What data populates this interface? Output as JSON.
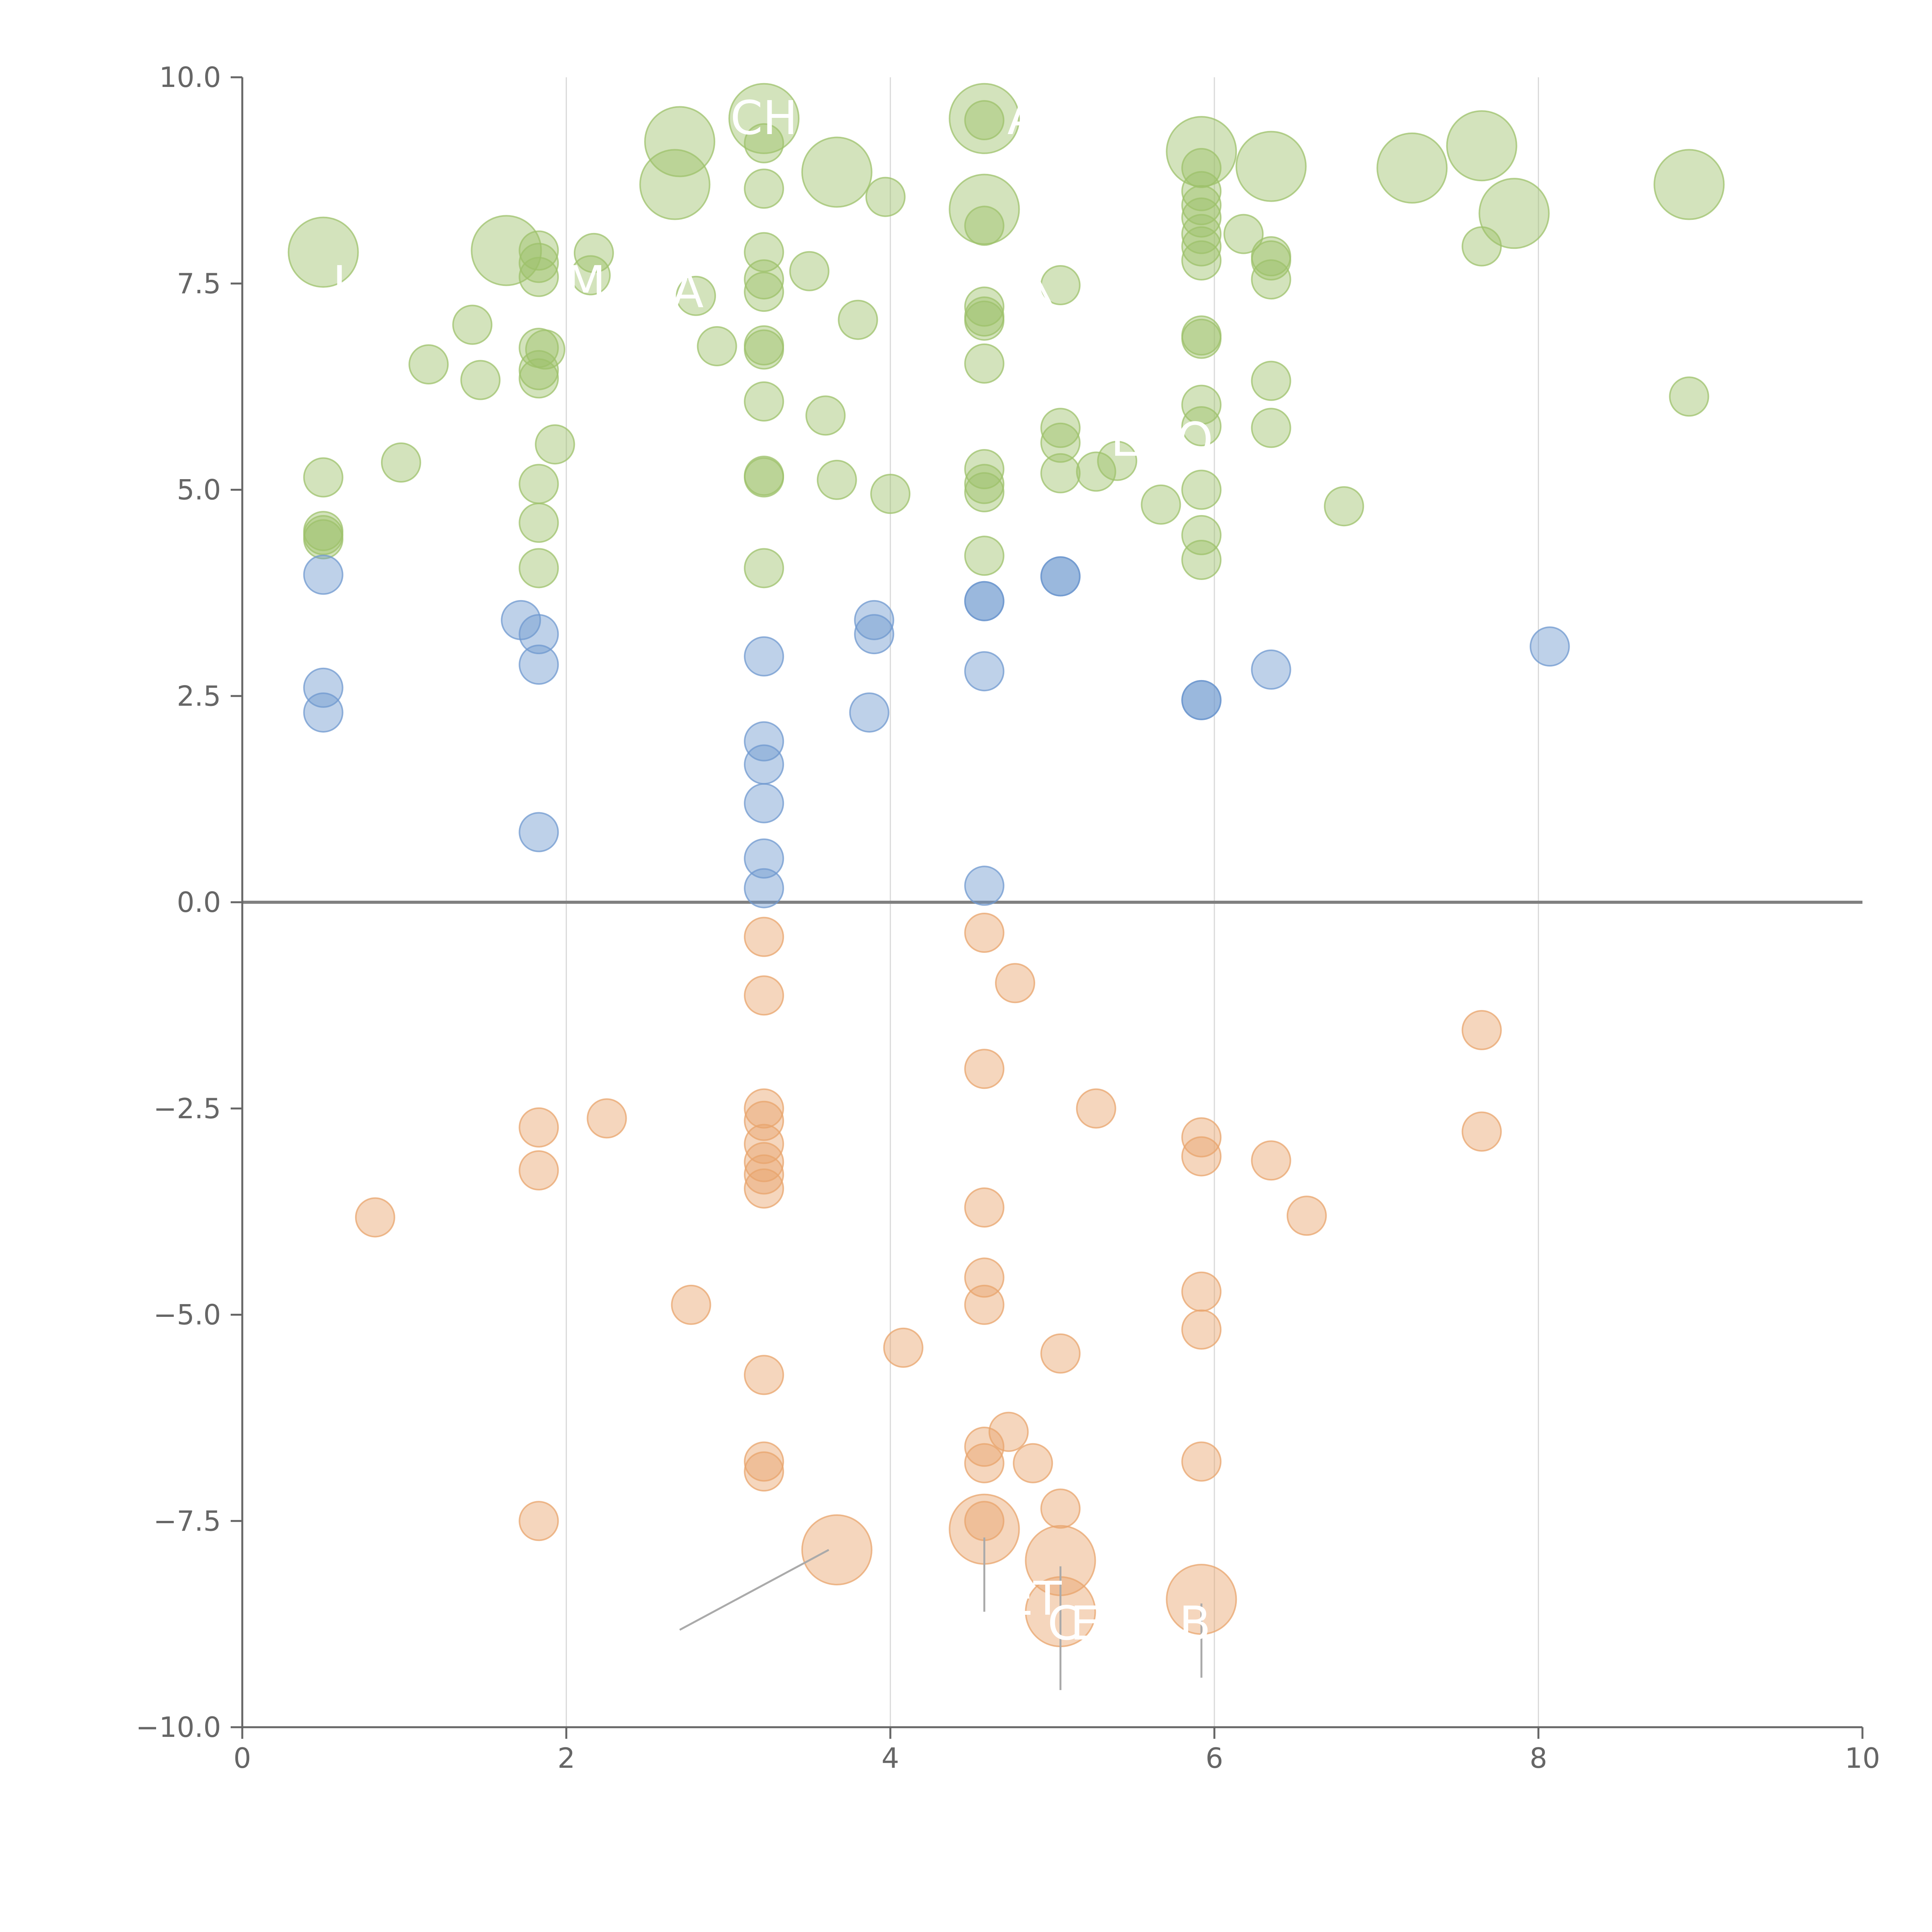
{
  "chart_data": {
    "type": "scatter",
    "title": "",
    "xlabel": "",
    "ylabel": "",
    "xlim": [
      0,
      10
    ],
    "ylim": [
      -10,
      10
    ],
    "x_ticks": [
      0,
      2,
      4,
      6,
      8,
      10
    ],
    "x_tick_labels": [
      "0",
      "2",
      "4",
      "6",
      "8",
      "10"
    ],
    "y_ticks": [
      -10,
      -7.5,
      -5,
      -2.5,
      0,
      2.5,
      5,
      7.5,
      10
    ],
    "y_tick_labels": [
      "−10.0",
      "−7.5",
      "−5.0",
      "−2.5",
      "0.0",
      "2.5",
      "5.0",
      "7.5",
      "10.0"
    ],
    "grid": "vertical",
    "reference_line_y": 0,
    "legend": "none",
    "colors": {
      "green": "#9dc16b",
      "blue": "#6f98cf",
      "orange": "#e8a46c",
      "grid": "#d9d9d9",
      "axis": "#666666",
      "zero_line": "#808080",
      "leader": "#aaaaaa",
      "label": "#ffffff"
    },
    "series": [
      {
        "name": "green",
        "color": "#9dc16b",
        "points": [
          [
            0.5,
            7.88,
            2
          ],
          [
            1.63,
            7.9,
            2
          ],
          [
            2.7,
            9.22,
            2
          ],
          [
            2.67,
            8.7,
            2
          ],
          [
            3.22,
            9.5,
            2
          ],
          [
            3.67,
            8.85,
            2
          ],
          [
            4.58,
            9.5,
            2
          ],
          [
            4.58,
            8.4,
            2
          ],
          [
            5.92,
            9.1,
            2
          ],
          [
            6.35,
            8.92,
            2
          ],
          [
            7.22,
            8.9,
            2
          ],
          [
            7.65,
            9.17,
            2
          ],
          [
            7.85,
            8.35,
            2
          ],
          [
            8.93,
            8.7,
            2
          ],
          [
            0.5,
            5.15,
            1
          ],
          [
            0.5,
            4.5,
            1
          ],
          [
            0.5,
            4.45,
            1
          ],
          [
            0.5,
            4.4,
            1
          ],
          [
            0.98,
            5.33,
            1
          ],
          [
            1.15,
            6.52,
            1
          ],
          [
            1.42,
            7.0,
            1
          ],
          [
            1.47,
            6.33,
            1
          ],
          [
            1.83,
            7.9,
            1
          ],
          [
            1.83,
            7.75,
            1
          ],
          [
            1.83,
            7.58,
            1
          ],
          [
            1.83,
            6.72,
            1
          ],
          [
            1.87,
            6.7,
            1
          ],
          [
            1.83,
            6.45,
            1
          ],
          [
            1.83,
            6.35,
            1
          ],
          [
            1.83,
            5.07,
            1
          ],
          [
            1.83,
            4.6,
            1
          ],
          [
            1.83,
            4.05,
            1
          ],
          [
            1.93,
            5.55,
            1
          ],
          [
            2.17,
            7.87,
            1
          ],
          [
            2.15,
            7.6,
            1
          ],
          [
            2.8,
            7.35,
            1
          ],
          [
            2.93,
            6.74,
            1
          ],
          [
            3.22,
            9.2,
            1
          ],
          [
            3.22,
            8.65,
            1
          ],
          [
            3.22,
            7.88,
            1
          ],
          [
            3.22,
            7.55,
            1
          ],
          [
            3.22,
            7.4,
            1
          ],
          [
            3.22,
            6.75,
            1
          ],
          [
            3.22,
            6.7,
            1
          ],
          [
            3.22,
            6.07,
            1
          ],
          [
            3.22,
            5.17,
            1
          ],
          [
            3.22,
            5.15,
            1
          ],
          [
            3.22,
            4.05,
            1
          ],
          [
            3.5,
            7.65,
            1
          ],
          [
            3.6,
            5.9,
            1
          ],
          [
            3.67,
            5.12,
            1
          ],
          [
            3.8,
            7.06,
            1
          ],
          [
            3.97,
            8.55,
            1
          ],
          [
            4.0,
            4.95,
            1
          ],
          [
            4.58,
            9.48,
            1
          ],
          [
            4.58,
            8.2,
            1
          ],
          [
            4.58,
            7.22,
            1
          ],
          [
            4.58,
            7.1,
            1
          ],
          [
            4.58,
            7.05,
            1
          ],
          [
            4.58,
            6.53,
            1
          ],
          [
            4.58,
            5.25,
            1
          ],
          [
            4.58,
            5.07,
            1
          ],
          [
            4.58,
            4.97,
            1
          ],
          [
            4.58,
            4.2,
            1
          ],
          [
            5.05,
            7.48,
            1
          ],
          [
            5.05,
            5.75,
            1
          ],
          [
            5.05,
            5.57,
            1
          ],
          [
            5.05,
            5.2,
            1
          ],
          [
            5.27,
            5.22,
            1
          ],
          [
            5.4,
            5.35,
            1
          ],
          [
            5.67,
            4.82,
            1
          ],
          [
            5.92,
            8.9,
            1
          ],
          [
            5.92,
            8.62,
            1
          ],
          [
            5.92,
            8.45,
            1
          ],
          [
            5.92,
            8.3,
            1
          ],
          [
            5.92,
            8.1,
            1
          ],
          [
            5.92,
            7.95,
            1
          ],
          [
            5.92,
            7.78,
            1
          ],
          [
            5.92,
            6.87,
            1
          ],
          [
            5.92,
            6.83,
            1
          ],
          [
            5.92,
            6.03,
            1
          ],
          [
            5.92,
            5.77,
            1
          ],
          [
            5.92,
            5.0,
            1
          ],
          [
            5.92,
            4.45,
            1
          ],
          [
            5.92,
            4.15,
            1
          ],
          [
            6.18,
            8.1,
            1
          ],
          [
            6.35,
            7.83,
            1
          ],
          [
            6.35,
            7.78,
            1
          ],
          [
            6.35,
            7.55,
            1
          ],
          [
            6.35,
            6.32,
            1
          ],
          [
            6.35,
            5.75,
            1
          ],
          [
            6.8,
            4.8,
            1
          ],
          [
            7.65,
            7.95,
            1
          ],
          [
            8.93,
            6.13,
            1
          ]
        ]
      },
      {
        "name": "blue",
        "color": "#6f98cf",
        "points": [
          [
            0.5,
            3.97,
            1
          ],
          [
            0.5,
            2.6,
            1
          ],
          [
            0.5,
            2.3,
            1
          ],
          [
            1.72,
            3.42,
            1
          ],
          [
            1.83,
            3.25,
            1
          ],
          [
            1.83,
            2.88,
            1
          ],
          [
            1.83,
            0.85,
            1
          ],
          [
            3.22,
            2.98,
            1
          ],
          [
            3.22,
            1.95,
            1
          ],
          [
            3.22,
            1.67,
            1
          ],
          [
            3.22,
            1.2,
            1
          ],
          [
            3.22,
            0.53,
            1
          ],
          [
            3.22,
            0.17,
            1
          ],
          [
            3.87,
            2.3,
            1
          ],
          [
            3.9,
            3.42,
            1
          ],
          [
            3.9,
            3.25,
            1
          ],
          [
            4.58,
            3.65,
            1
          ],
          [
            4.58,
            3.65,
            1
          ],
          [
            4.58,
            2.8,
            1
          ],
          [
            4.58,
            0.2,
            1
          ],
          [
            5.05,
            3.95,
            1
          ],
          [
            5.05,
            3.95,
            1
          ],
          [
            5.92,
            2.45,
            1
          ],
          [
            5.92,
            2.45,
            1
          ],
          [
            6.35,
            2.82,
            1
          ],
          [
            8.07,
            3.1,
            1
          ]
        ]
      },
      {
        "name": "orange",
        "color": "#e8a46c",
        "points": [
          [
            0.82,
            -3.82,
            1
          ],
          [
            1.83,
            -2.73,
            1
          ],
          [
            1.83,
            -3.25,
            1
          ],
          [
            1.83,
            -7.5,
            1
          ],
          [
            2.25,
            -2.62,
            1
          ],
          [
            2.77,
            -4.88,
            1
          ],
          [
            3.22,
            -0.42,
            1
          ],
          [
            3.22,
            -1.13,
            1
          ],
          [
            3.22,
            -2.5,
            1
          ],
          [
            3.22,
            -2.65,
            1
          ],
          [
            3.22,
            -2.93,
            1
          ],
          [
            3.22,
            -3.15,
            1
          ],
          [
            3.22,
            -3.3,
            1
          ],
          [
            3.22,
            -3.47,
            1
          ],
          [
            3.22,
            -5.73,
            1
          ],
          [
            3.22,
            -6.78,
            1
          ],
          [
            3.22,
            -6.9,
            1
          ],
          [
            3.67,
            -7.85,
            2
          ],
          [
            4.08,
            -5.4,
            1
          ],
          [
            4.58,
            -0.37,
            1
          ],
          [
            4.58,
            -2.02,
            1
          ],
          [
            4.58,
            -3.7,
            1
          ],
          [
            4.58,
            -4.55,
            1
          ],
          [
            4.58,
            -4.88,
            1
          ],
          [
            4.58,
            -6.6,
            1
          ],
          [
            4.58,
            -6.8,
            1
          ],
          [
            4.58,
            -7.5,
            1
          ],
          [
            4.58,
            -7.6,
            2
          ],
          [
            4.77,
            -0.98,
            1
          ],
          [
            4.73,
            -6.42,
            1
          ],
          [
            4.88,
            -6.8,
            1
          ],
          [
            5.05,
            -5.47,
            1
          ],
          [
            5.05,
            -7.35,
            1
          ],
          [
            5.05,
            -7.98,
            2
          ],
          [
            5.05,
            -8.6,
            2
          ],
          [
            5.27,
            -2.5,
            1
          ],
          [
            5.92,
            -2.85,
            1
          ],
          [
            5.92,
            -3.08,
            1
          ],
          [
            5.92,
            -4.72,
            1
          ],
          [
            5.92,
            -5.18,
            1
          ],
          [
            5.92,
            -6.78,
            1
          ],
          [
            5.92,
            -8.45,
            2
          ],
          [
            6.35,
            -3.13,
            1
          ],
          [
            6.57,
            -3.8,
            1
          ],
          [
            7.65,
            -1.55,
            1
          ],
          [
            7.65,
            -2.78,
            1
          ]
        ]
      }
    ],
    "annotations": [
      {
        "text": "CH",
        "x": 3.22,
        "y": 9.5
      },
      {
        "text": "A",
        "x": 4.82,
        "y": 9.5
      },
      {
        "text": "I",
        "x": 0.6,
        "y": 7.5
      },
      {
        "text": "M",
        "x": 2.12,
        "y": 7.5
      },
      {
        "text": "A",
        "x": 2.75,
        "y": 7.4
      },
      {
        "text": "╲",
        "x": 4.92,
        "y": 7.5
      },
      {
        "text": "E",
        "x": 5.45,
        "y": 5.6
      },
      {
        "text": "O",
        "x": 5.88,
        "y": 5.6
      },
      {
        "text": "ET",
        "x": 4.88,
        "y": -8.45
      },
      {
        "text": "C",
        "x": 5.07,
        "y": -8.75
      },
      {
        "text": "E",
        "x": 5.2,
        "y": -8.75
      },
      {
        "text": "B",
        "x": 5.88,
        "y": -8.75
      }
    ],
    "leader_lines": [
      [
        3.62,
        -7.85,
        2.7,
        -8.82
      ],
      [
        4.58,
        -7.7,
        4.58,
        -8.6
      ],
      [
        5.05,
        -8.05,
        5.05,
        -9.55
      ],
      [
        5.92,
        -8.5,
        5.92,
        -9.4
      ]
    ]
  }
}
